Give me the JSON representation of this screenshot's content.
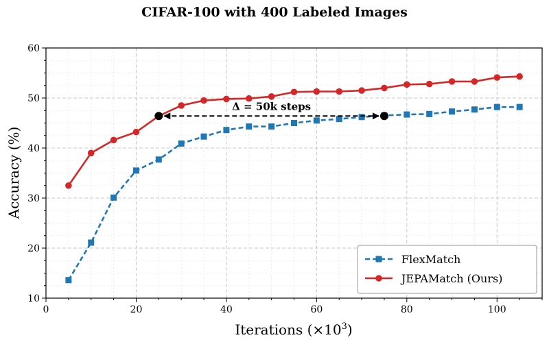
{
  "chart_data": {
    "type": "line",
    "title": "CIFAR-100 with 400 Labeled Images",
    "xlabel": "Iterations (×10",
    "xlabel_sup": "3",
    "xlabel_close": ")",
    "ylabel": "Accuracy (%)",
    "xlim": [
      0,
      110
    ],
    "ylim": [
      10,
      60
    ],
    "xticks": [
      0,
      20,
      40,
      60,
      80,
      100
    ],
    "yticks": [
      10,
      20,
      30,
      40,
      50,
      60
    ],
    "grid": true,
    "legend_position": "lower-right",
    "x": [
      5,
      10,
      15,
      20,
      25,
      30,
      35,
      40,
      45,
      50,
      55,
      60,
      65,
      70,
      75,
      80,
      85,
      90,
      95,
      100,
      105
    ],
    "series": [
      {
        "name": "FlexMatch",
        "color": "#1f77b4",
        "marker": "square",
        "line_style": "dashed",
        "values": [
          13.6,
          21.1,
          30.1,
          35.5,
          37.7,
          40.9,
          42.3,
          43.6,
          44.3,
          44.3,
          45.0,
          45.5,
          45.8,
          46.2,
          46.5,
          46.7,
          46.8,
          47.3,
          47.7,
          48.2,
          48.2
        ]
      },
      {
        "name": "JEPAMatch (Ours)",
        "color": "#d62728",
        "marker": "circle",
        "line_style": "solid",
        "values": [
          32.5,
          39.0,
          41.6,
          43.2,
          46.4,
          48.5,
          49.5,
          49.8,
          49.9,
          50.3,
          51.2,
          51.3,
          51.3,
          51.5,
          52.0,
          52.7,
          52.8,
          53.3,
          53.3,
          54.1,
          54.3
        ]
      }
    ],
    "annotation": {
      "text": "Δ = 50k steps",
      "from": [
        25,
        46.4
      ],
      "to": [
        75,
        46.4
      ],
      "color": "#000000"
    }
  }
}
